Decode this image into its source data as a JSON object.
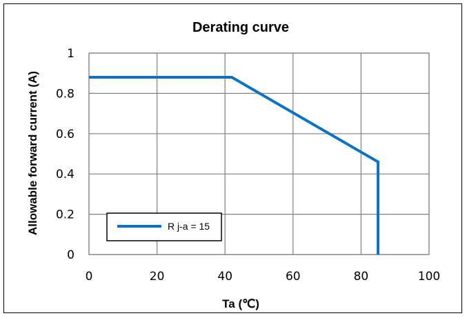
{
  "chart_data": {
    "type": "line",
    "title": "Derating curve",
    "xlabel": "Ta (℃)",
    "ylabel": "Allowable  forward  current  (A)",
    "xlim": [
      0,
      100
    ],
    "ylim": [
      0,
      1
    ],
    "x_ticks": [
      "0",
      "20",
      "40",
      "60",
      "80",
      "100"
    ],
    "y_ticks": [
      "0",
      "0.2",
      "0.4",
      "0.6",
      "0.8",
      "1"
    ],
    "grid": true,
    "legend_position": "bottom-left",
    "series": [
      {
        "name": "R j-a = 15",
        "color": "#0E72C0",
        "x": [
          0,
          42,
          85,
          85
        ],
        "y": [
          0.88,
          0.88,
          0.46,
          0
        ]
      }
    ]
  }
}
